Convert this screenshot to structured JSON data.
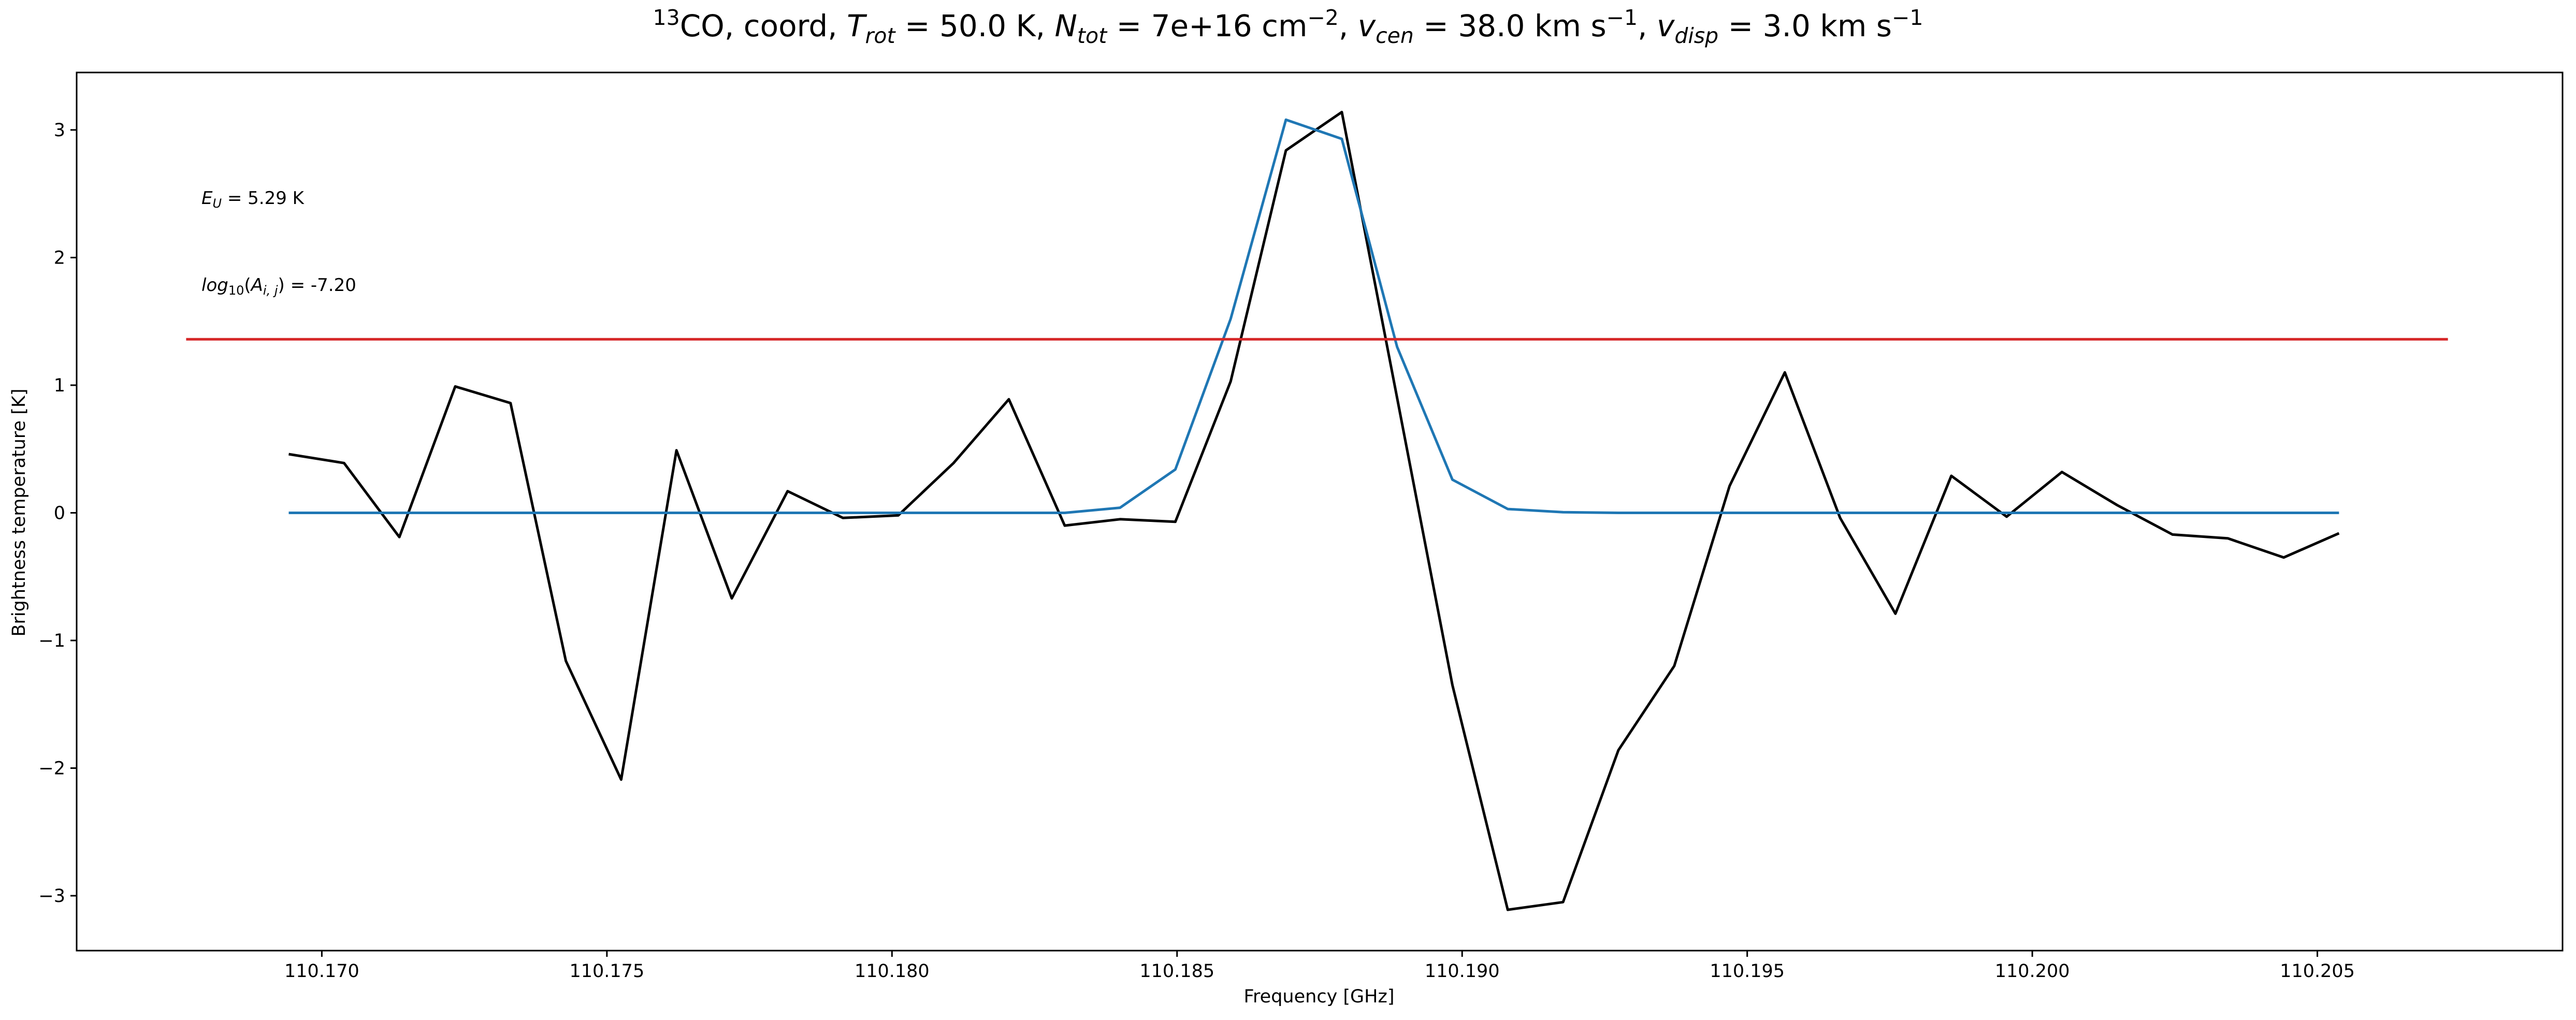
{
  "chart_data": {
    "type": "line",
    "title": {
      "segments": [
        {
          "text": "13",
          "style": "sup"
        },
        {
          "text": "CO, coord, "
        },
        {
          "text": "T",
          "style": "it"
        },
        {
          "text": "rot",
          "style": "sub-it"
        },
        {
          "text": " =  50.0 K, "
        },
        {
          "text": "N",
          "style": "it"
        },
        {
          "text": "tot",
          "style": "sub-it"
        },
        {
          "text": " =  7e+16 cm"
        },
        {
          "text": "−2",
          "style": "sup"
        },
        {
          "text": ", "
        },
        {
          "text": "v",
          "style": "it"
        },
        {
          "text": "cen",
          "style": "sub-it"
        },
        {
          "text": " =  38.0 km s"
        },
        {
          "text": "−1",
          "style": "sup"
        },
        {
          "text": ", "
        },
        {
          "text": "v",
          "style": "it"
        },
        {
          "text": "disp",
          "style": "sub-it"
        },
        {
          "text": " =  3.0 km s"
        },
        {
          "text": "−1",
          "style": "sup"
        }
      ]
    },
    "xlabel": "Frequency [GHz]",
    "ylabel": "Brightness temperature [K]",
    "xlim": [
      110.1657,
      110.2093
    ],
    "ylim": [
      -3.43,
      3.45
    ],
    "grid": false,
    "x_ticks": [
      {
        "value": 110.17,
        "label": "110.170"
      },
      {
        "value": 110.175,
        "label": "110.175"
      },
      {
        "value": 110.18,
        "label": "110.180"
      },
      {
        "value": 110.185,
        "label": "110.185"
      },
      {
        "value": 110.19,
        "label": "110.190"
      },
      {
        "value": 110.195,
        "label": "110.195"
      },
      {
        "value": 110.2,
        "label": "110.200"
      },
      {
        "value": 110.205,
        "label": "110.205"
      }
    ],
    "y_ticks": [
      {
        "value": 3,
        "label": "3"
      },
      {
        "value": 2,
        "label": "2"
      },
      {
        "value": 1,
        "label": "1"
      },
      {
        "value": 0,
        "label": "0"
      },
      {
        "value": -1,
        "label": "−1"
      },
      {
        "value": -2,
        "label": "−2"
      },
      {
        "value": -3,
        "label": "−3"
      }
    ],
    "annotations": [
      {
        "id": "eu",
        "segments": [
          {
            "text": "E",
            "style": "it"
          },
          {
            "text": "U",
            "style": "sub-it"
          },
          {
            "text": " = 5.29 K"
          }
        ]
      },
      {
        "id": "aij",
        "segments": [
          {
            "text": "log",
            "style": "it"
          },
          {
            "text": "10",
            "style": "sub"
          },
          {
            "text": "("
          },
          {
            "text": "A",
            "style": "it"
          },
          {
            "text": "i, j",
            "style": "sub-it"
          },
          {
            "text": ") = -7.20"
          }
        ]
      }
    ],
    "series": [
      {
        "color": "#000000",
        "x": [
          110.16942,
          110.17039,
          110.17136,
          110.17234,
          110.17331,
          110.17428,
          110.17525,
          110.17622,
          110.17719,
          110.17817,
          110.17914,
          110.18011,
          110.18108,
          110.18205,
          110.18303,
          110.184,
          110.18497,
          110.18594,
          110.18691,
          110.18789,
          110.18886,
          110.18983,
          110.1908,
          110.19177,
          110.19274,
          110.19372,
          110.19469,
          110.19566,
          110.19663,
          110.1976,
          110.19858,
          110.19955,
          110.20052,
          110.20149,
          110.20246,
          110.20343,
          110.20441,
          110.20538
        ],
        "y": [
          0.46,
          0.39,
          -0.19,
          0.99,
          0.86,
          -1.16,
          -2.09,
          0.49,
          -0.67,
          0.17,
          -0.04,
          -0.02,
          0.39,
          0.89,
          -0.1,
          -0.05,
          -0.07,
          1.03,
          2.84,
          3.14,
          0.9,
          -1.35,
          -3.11,
          -3.05,
          -1.86,
          -1.2,
          0.21,
          1.1,
          -0.04,
          -0.79,
          0.29,
          -0.03,
          0.32,
          0.06,
          -0.17,
          -0.2,
          -0.35,
          -0.16
        ]
      },
      {
        "color": "#1f77b4",
        "x": [
          110.16942,
          110.17039,
          110.17136,
          110.17234,
          110.17331,
          110.17428,
          110.17525,
          110.17622,
          110.17719,
          110.17817,
          110.17914,
          110.18011,
          110.18108,
          110.18205,
          110.18303,
          110.184,
          110.18497,
          110.18594,
          110.18691,
          110.18789,
          110.18886,
          110.18983,
          110.1908,
          110.19177,
          110.19274,
          110.19372,
          110.19469,
          110.19566,
          110.19663,
          110.1976,
          110.19858,
          110.19955,
          110.20052,
          110.20149,
          110.20246,
          110.20343,
          110.20441,
          110.20538
        ],
        "y": [
          0,
          0,
          0,
          0,
          0,
          0,
          0,
          0,
          0,
          0,
          0,
          0,
          0,
          0,
          0,
          0.04,
          0.34,
          1.52,
          3.08,
          2.93,
          1.3,
          0.26,
          0.03,
          0.005,
          0,
          0,
          0,
          0,
          0,
          0,
          0,
          0,
          0,
          0,
          0,
          0,
          0,
          0
        ]
      },
      {
        "color": "#d62728",
        "x": [
          110.16762,
          110.20729
        ],
        "y": [
          1.36,
          1.36
        ]
      }
    ]
  }
}
